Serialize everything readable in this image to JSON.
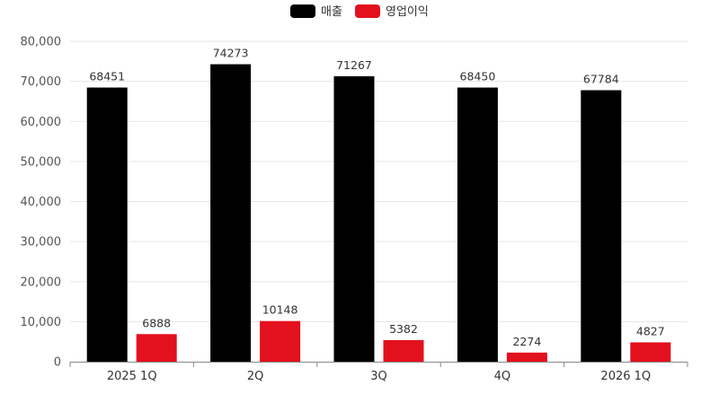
{
  "chart_data": {
    "type": "bar",
    "categories": [
      "2025 1Q",
      "2Q",
      "3Q",
      "4Q",
      "2026 1Q"
    ],
    "series": [
      {
        "name": "매출",
        "color": "#000000",
        "values": [
          68451,
          74273,
          71267,
          68450,
          67784
        ]
      },
      {
        "name": "영업이익",
        "color": "#e3101e",
        "values": [
          6888,
          10148,
          5382,
          2274,
          4827
        ]
      }
    ],
    "y_ticks": [
      "0",
      "10,000",
      "20,000",
      "30,000",
      "40,000",
      "50,000",
      "60,000",
      "70,000",
      "80,000"
    ],
    "ylim": [
      0,
      80000
    ],
    "legend_position": "top-center",
    "grid": true,
    "title": "",
    "xlabel": "",
    "ylabel": ""
  }
}
